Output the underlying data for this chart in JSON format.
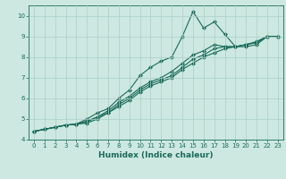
{
  "xlabel": "Humidex (Indice chaleur)",
  "ylabel": "",
  "bg_color": "#cce8e0",
  "grid_color": "#aacfc8",
  "line_color": "#1a6b5a",
  "marker": "D",
  "markersize": 2.0,
  "linewidth": 0.8,
  "xlim": [
    -0.5,
    23.5
  ],
  "ylim": [
    4,
    10.5
  ],
  "xticks": [
    0,
    1,
    2,
    3,
    4,
    5,
    6,
    7,
    8,
    9,
    10,
    11,
    12,
    13,
    14,
    15,
    16,
    17,
    18,
    19,
    20,
    21,
    22,
    23
  ],
  "yticks": [
    4,
    5,
    6,
    7,
    8,
    9,
    10
  ],
  "series": [
    [
      4.4,
      4.5,
      4.6,
      4.7,
      4.75,
      5.0,
      5.3,
      5.5,
      6.0,
      6.4,
      7.1,
      7.5,
      7.8,
      8.0,
      9.0,
      10.2,
      9.4,
      9.7,
      9.1,
      8.5,
      8.5,
      8.6,
      9.0,
      9.0
    ],
    [
      4.4,
      4.5,
      4.6,
      4.7,
      4.75,
      4.9,
      5.1,
      5.4,
      5.8,
      6.1,
      6.5,
      6.8,
      7.0,
      7.3,
      7.7,
      8.1,
      8.3,
      8.6,
      8.5,
      8.5,
      8.6,
      8.7,
      9.0,
      9.0
    ],
    [
      4.4,
      4.5,
      4.6,
      4.7,
      4.75,
      4.8,
      5.0,
      5.3,
      5.6,
      5.9,
      6.3,
      6.6,
      6.8,
      7.0,
      7.4,
      7.7,
      8.0,
      8.2,
      8.4,
      8.5,
      8.6,
      8.75,
      9.0,
      9.0
    ],
    [
      4.4,
      4.5,
      4.6,
      4.7,
      4.75,
      4.85,
      5.1,
      5.3,
      5.7,
      6.0,
      6.4,
      6.7,
      6.9,
      7.1,
      7.5,
      7.9,
      8.1,
      8.4,
      8.5,
      8.5,
      8.6,
      8.7,
      9.0,
      9.0
    ]
  ],
  "xlabel_fontsize": 6.5,
  "tick_fontsize": 5.0
}
